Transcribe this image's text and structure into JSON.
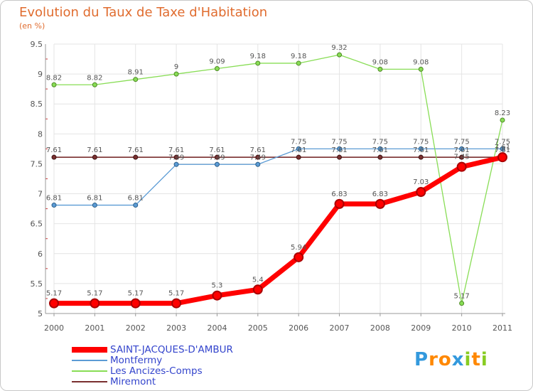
{
  "chart_data": {
    "type": "line",
    "title": "Evolution du Taux de Taxe d'Habitation",
    "subtitle": "(en %)",
    "categories": [
      "2000",
      "2001",
      "2002",
      "2003",
      "2004",
      "2005",
      "2006",
      "2007",
      "2008",
      "2009",
      "2010",
      "2011"
    ],
    "ylim": [
      5,
      9.5
    ],
    "yticks": [
      "5",
      "5.5",
      "6",
      "6.5",
      "7",
      "7.5",
      "8",
      "8.5",
      "9",
      "9.5"
    ],
    "series": [
      {
        "name": "SAINT-JACQUES-D'AMBUR",
        "color": "#ff0000",
        "values": [
          5.17,
          5.17,
          5.17,
          5.17,
          5.3,
          5.4,
          5.94,
          6.83,
          6.83,
          7.03,
          7.45,
          7.61
        ],
        "labels": [
          "5.17",
          "5.17",
          "5.17",
          "5.17",
          "5.3",
          "5.4",
          "5.94",
          "6.83",
          "6.83",
          "7.03",
          "7.45",
          "7.61"
        ]
      },
      {
        "name": "Montfermy",
        "color": "#5b9bd5",
        "values": [
          6.81,
          6.81,
          6.81,
          7.49,
          7.49,
          7.49,
          7.75,
          7.75,
          7.75,
          7.75,
          7.75,
          7.75
        ],
        "labels": [
          "6.81",
          "6.81",
          "6.81",
          "7.49",
          "7.49",
          "7.49",
          "7.75",
          "7.75",
          "7.75",
          "7.75",
          "7.75",
          "7.75"
        ]
      },
      {
        "name": "Les Ancizes-Comps",
        "color": "#88dd55",
        "values": [
          8.82,
          8.82,
          8.91,
          9.0,
          9.09,
          9.18,
          9.18,
          9.32,
          9.08,
          9.08,
          5.17,
          8.23
        ],
        "labels": [
          "8.82",
          "8.82",
          "8.91",
          "9",
          "9.09",
          "9.18",
          "9.18",
          "9.32",
          "9.08",
          "9.08",
          "5.17",
          "8.23"
        ]
      },
      {
        "name": "Miremont",
        "color": "#7a2f2f",
        "values": [
          7.61,
          7.61,
          7.61,
          7.61,
          7.61,
          7.61,
          7.61,
          7.61,
          7.61,
          7.61,
          7.61,
          7.61
        ],
        "labels": [
          "7.61",
          "7.61",
          "7.61",
          "7.61",
          "7.61",
          "7.61",
          "7.61",
          "7.61",
          "7.61",
          "7.61",
          "7.61",
          "7.61"
        ]
      }
    ]
  },
  "legend": {
    "items": [
      {
        "label": "SAINT-JACQUES-D'AMBUR",
        "color": "#ff0000"
      },
      {
        "label": "Montfermy",
        "color": "#5b9bd5"
      },
      {
        "label": "Les Ancizes-Comps",
        "color": "#88dd55"
      },
      {
        "label": "Miremont",
        "color": "#7a2f2f"
      }
    ]
  },
  "logo": {
    "letters": [
      "P",
      "r",
      "o",
      "x",
      "i",
      "t",
      "i"
    ],
    "colors": [
      "#3399dd",
      "#ff8800",
      "#ff8800",
      "#3399dd",
      "#88cc22",
      "#ff8800",
      "#88cc22"
    ]
  }
}
